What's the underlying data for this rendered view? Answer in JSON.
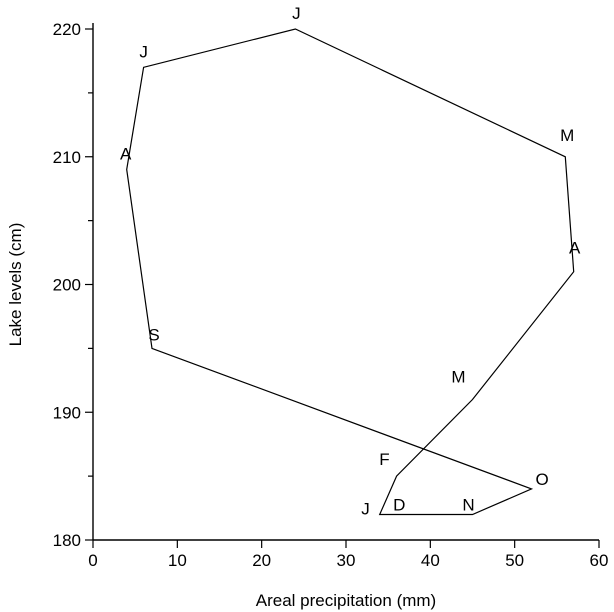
{
  "chart_data": {
    "type": "line",
    "xlabel": "Areal precipitation (mm)",
    "ylabel": "Lake levels (cm)",
    "xlim": [
      0,
      60
    ],
    "ylim": [
      180,
      220
    ],
    "x_ticks": [
      0,
      10,
      20,
      30,
      40,
      50,
      60
    ],
    "y_ticks": [
      180,
      190,
      200,
      210,
      220
    ],
    "y_minor_ticks": [
      185,
      195,
      205,
      215
    ],
    "grid": false,
    "legend": "none",
    "series": [
      {
        "points": [
          {
            "label": "J",
            "x": 34,
            "y": 182
          },
          {
            "label": "F",
            "x": 36,
            "y": 185
          },
          {
            "label": "M",
            "x": 45,
            "y": 191
          },
          {
            "label": "A",
            "x": 57,
            "y": 201
          },
          {
            "label": "M",
            "x": 56,
            "y": 210
          },
          {
            "label": "J",
            "x": 24,
            "y": 220
          },
          {
            "label": "J",
            "x": 6,
            "y": 217
          },
          {
            "label": "A",
            "x": 4,
            "y": 209
          },
          {
            "label": "S",
            "x": 7,
            "y": 195
          },
          {
            "label": "O",
            "x": 52,
            "y": 184
          },
          {
            "label": "N",
            "x": 45,
            "y": 182
          },
          {
            "label": "D",
            "x": 35,
            "y": 182
          }
        ],
        "closed": true
      }
    ]
  }
}
